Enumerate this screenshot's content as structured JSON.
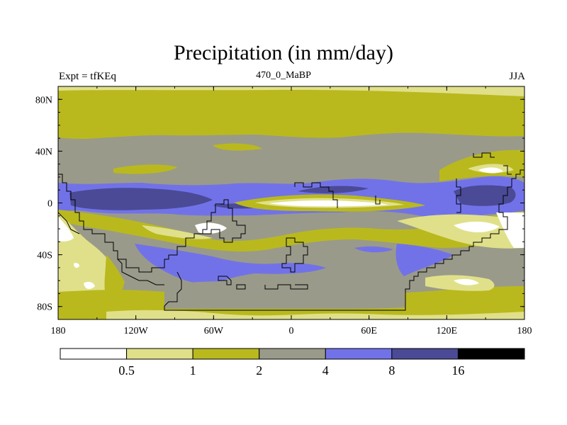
{
  "chart_data": {
    "type": "heatmap",
    "title": "Precipitation (in mm/day)",
    "left_string": "Expt = tfKEq",
    "center_string": "470_0_MaBP",
    "right_string": "JJA",
    "x_ticks": [
      "180",
      "120W",
      "60W",
      "0",
      "60E",
      "120E",
      "180"
    ],
    "y_ticks": [
      "80N",
      "40N",
      "0",
      "40S",
      "80S"
    ],
    "xlim": [
      -180,
      180
    ],
    "ylim": [
      -90,
      90
    ],
    "colorbar": {
      "levels": [
        "0.5",
        "1",
        "2",
        "4",
        "8",
        "16"
      ],
      "colors": [
        "#ffffff",
        "#e0e08a",
        "#b9b91e",
        "#9a9a8a",
        "#7272e8",
        "#4a4a96",
        "#000000"
      ]
    },
    "latitude_bands": [
      {
        "lat_range": [
          60,
          90
        ],
        "class": "1-2"
      },
      {
        "lat_range": [
          30,
          60
        ],
        "class": "2-4"
      },
      {
        "lat_range": [
          5,
          30
        ],
        "class": "2-4 with 4-8 belts"
      },
      {
        "lat_range": [
          -20,
          5
        ],
        "class": "4-8 with 8-16 maxima; 0-0.5 at equatorial Atlantic"
      },
      {
        "lat_range": [
          -65,
          -20
        ],
        "class": "4-8 and 2-4"
      },
      {
        "lat_range": [
          -90,
          -65
        ],
        "class": "1-2"
      }
    ]
  }
}
